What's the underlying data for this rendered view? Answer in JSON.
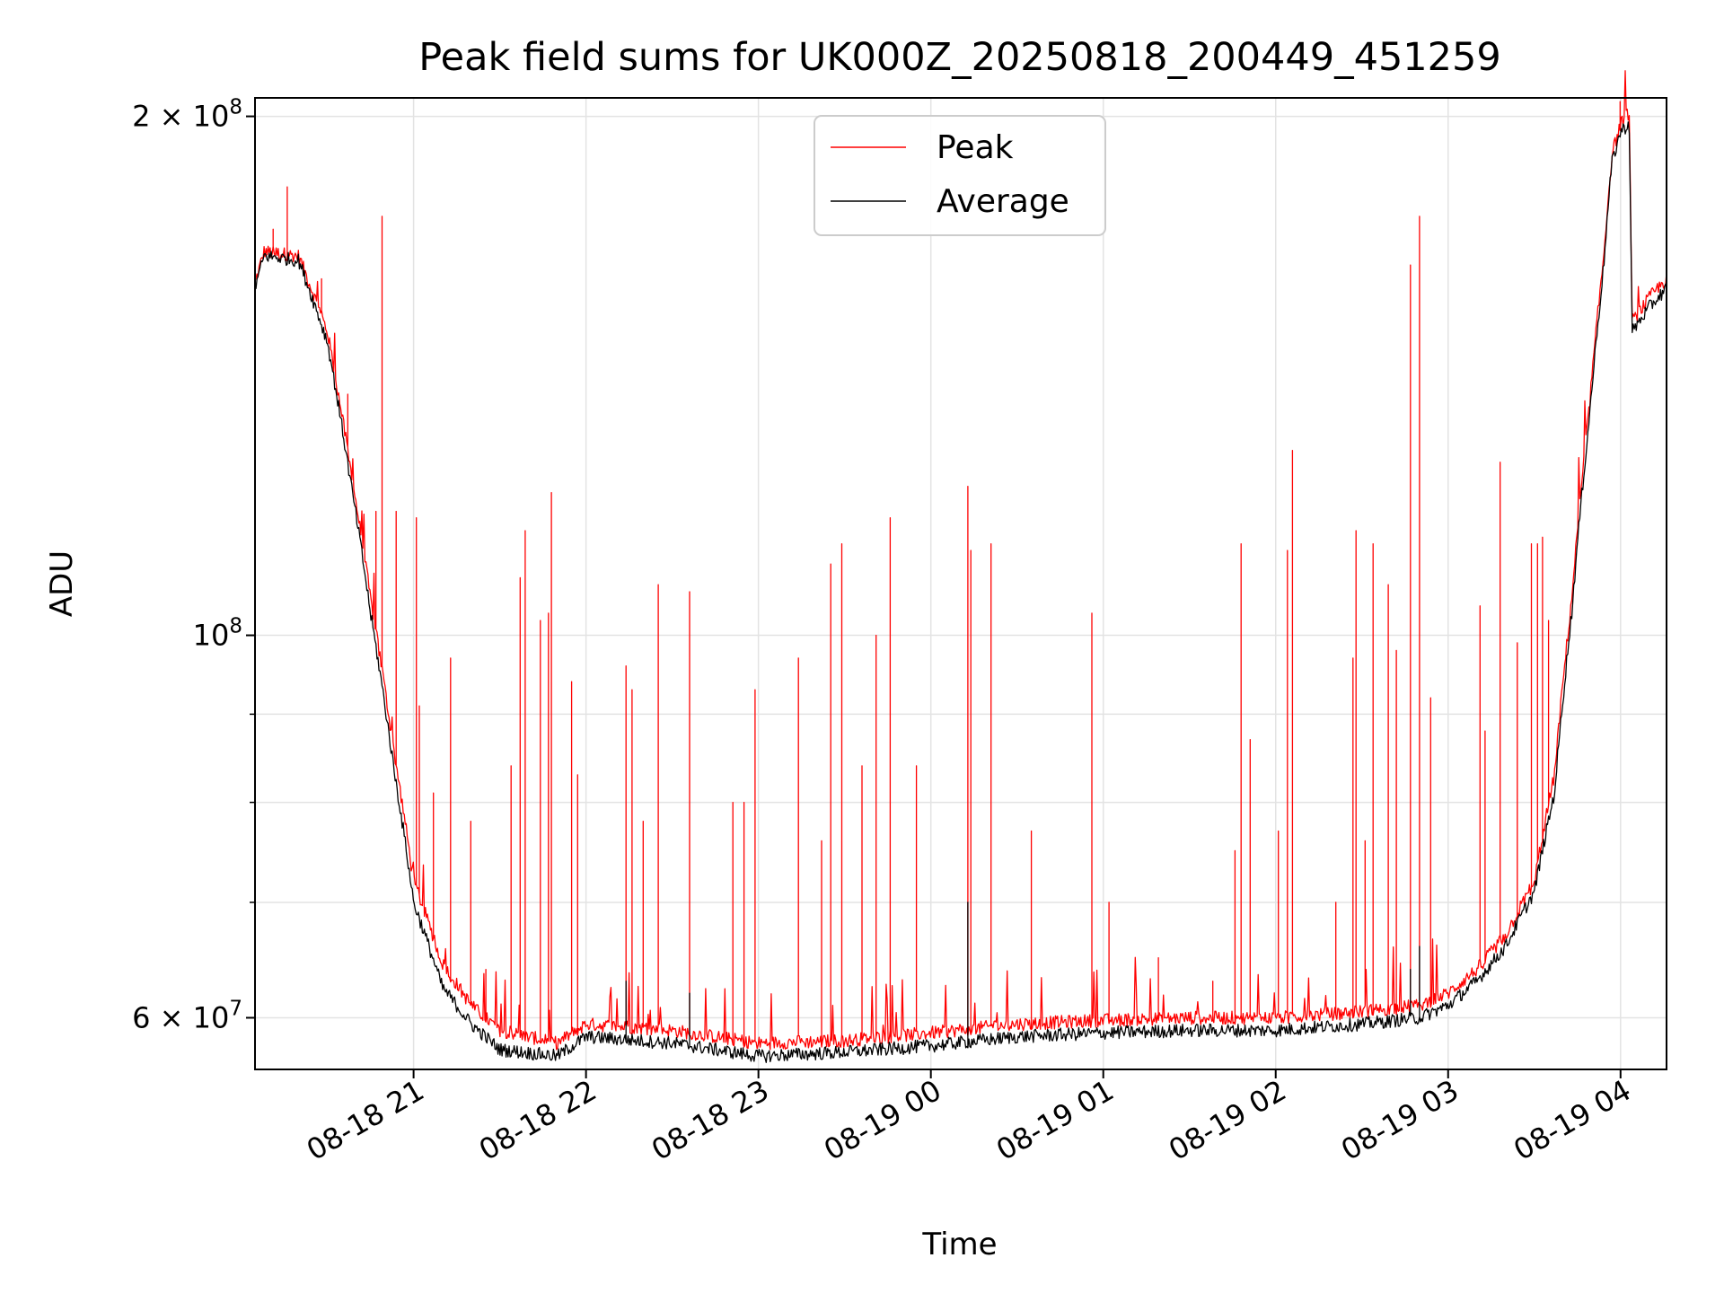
{
  "chart_data": {
    "type": "line",
    "title": "Peak field sums for UK000Z_20250818_200449_451259",
    "xlabel": "Time",
    "ylabel": "ADU",
    "y_scale": "log",
    "ylim": [
      56000000,
      205000000
    ],
    "xlim": [
      "2025-08-18 20:04:49",
      "2025-08-19 04:16:00"
    ],
    "grid": true,
    "legend_position": "upper center",
    "x_ticks": [
      {
        "value": "2025-08-18 21:00",
        "label": "08-18 21"
      },
      {
        "value": "2025-08-18 22:00",
        "label": "08-18 22"
      },
      {
        "value": "2025-08-18 23:00",
        "label": "08-18 23"
      },
      {
        "value": "2025-08-19 00:00",
        "label": "08-19 00"
      },
      {
        "value": "2025-08-19 01:00",
        "label": "08-19 01"
      },
      {
        "value": "2025-08-19 02:00",
        "label": "08-19 02"
      },
      {
        "value": "2025-08-19 03:00",
        "label": "08-19 03"
      },
      {
        "value": "2025-08-19 04:00",
        "label": "08-19 04"
      }
    ],
    "y_major_ticks": [
      {
        "value": 60000000,
        "mantissa": "6",
        "times": "×",
        "base": "10",
        "exp": "7"
      },
      {
        "value": 100000000,
        "mantissa": "",
        "times": "",
        "base": "10",
        "exp": "8"
      },
      {
        "value": 200000000,
        "mantissa": "2",
        "times": "×",
        "base": "10",
        "exp": "8"
      }
    ],
    "y_minor_ticks": [
      70000000,
      80000000,
      90000000
    ],
    "series": [
      {
        "name": "Peak",
        "color": "#ff0000",
        "baseline": [
          [
            "2025-08-18 20:04:49",
            160000000
          ],
          [
            "2025-08-18 20:08",
            167000000
          ],
          [
            "2025-08-18 20:20",
            166000000
          ],
          [
            "2025-08-18 20:30",
            150000000
          ],
          [
            "2025-08-18 20:38",
            125000000
          ],
          [
            "2025-08-18 20:45",
            105000000
          ],
          [
            "2025-08-18 20:53",
            86000000
          ],
          [
            "2025-08-18 21:00",
            72000000
          ],
          [
            "2025-08-18 21:10",
            64500000
          ],
          [
            "2025-08-18 21:20",
            61000000
          ],
          [
            "2025-08-18 21:30",
            59000000
          ],
          [
            "2025-08-18 21:50",
            58000000
          ],
          [
            "2025-08-18 22:00",
            59500000
          ],
          [
            "2025-08-18 22:30",
            59000000
          ],
          [
            "2025-08-18 23:00",
            58000000
          ],
          [
            "2025-08-18 23:30",
            58200000
          ],
          [
            "2025-08-19 00:00",
            58800000
          ],
          [
            "2025-08-19 00:30",
            59500000
          ],
          [
            "2025-08-19 01:00",
            59800000
          ],
          [
            "2025-08-19 01:30",
            60000000
          ],
          [
            "2025-08-19 02:00",
            60000000
          ],
          [
            "2025-08-19 02:30",
            60500000
          ],
          [
            "2025-08-19 02:50",
            61000000
          ],
          [
            "2025-08-19 03:00",
            62000000
          ],
          [
            "2025-08-19 03:10",
            64000000
          ],
          [
            "2025-08-19 03:20",
            67000000
          ],
          [
            "2025-08-19 03:30",
            72000000
          ],
          [
            "2025-08-19 03:37",
            83000000
          ],
          [
            "2025-08-19 03:43",
            105000000
          ],
          [
            "2025-08-19 03:49",
            135000000
          ],
          [
            "2025-08-19 03:54",
            165000000
          ],
          [
            "2025-08-19 03:57",
            190000000
          ],
          [
            "2025-08-19 04:00",
            198000000
          ],
          [
            "2025-08-19 04:03",
            201000000
          ],
          [
            "2025-08-19 04:04",
            152000000
          ],
          [
            "2025-08-19 04:10",
            157000000
          ],
          [
            "2025-08-19 04:16",
            161000000
          ]
        ],
        "spikes": [
          [
            "2025-08-18 20:11",
            172000000
          ],
          [
            "2025-08-18 20:16",
            182000000
          ],
          [
            "2025-08-18 20:28",
            161000000
          ],
          [
            "2025-08-18 20:37",
            138000000
          ],
          [
            "2025-08-18 20:47",
            118000000
          ],
          [
            "2025-08-18 20:54",
            118000000
          ],
          [
            "2025-08-18 21:02",
            91000000
          ],
          [
            "2025-08-18 20:49",
            175000000
          ],
          [
            "2025-08-18 21:01",
            117000000
          ],
          [
            "2025-08-18 21:07",
            81000000
          ],
          [
            "2025-08-18 21:13",
            97000000
          ],
          [
            "2025-08-18 21:20",
            78000000
          ],
          [
            "2025-08-18 21:25",
            64000000
          ],
          [
            "2025-08-18 21:34",
            84000000
          ],
          [
            "2025-08-18 21:37",
            108000000
          ],
          [
            "2025-08-18 21:39",
            115000000
          ],
          [
            "2025-08-18 21:44",
            102000000
          ],
          [
            "2025-08-18 21:47",
            103000000
          ],
          [
            "2025-08-18 21:48",
            121000000
          ],
          [
            "2025-08-18 21:55",
            94000000
          ],
          [
            "2025-08-18 21:57",
            83000000
          ],
          [
            "2025-08-18 22:14",
            96000000
          ],
          [
            "2025-08-18 22:16",
            93000000
          ],
          [
            "2025-08-18 22:20",
            78000000
          ],
          [
            "2025-08-18 22:25",
            107000000
          ],
          [
            "2025-08-18 22:36",
            106000000
          ],
          [
            "2025-08-18 22:51",
            80000000
          ],
          [
            "2025-08-18 22:55",
            80000000
          ],
          [
            "2025-08-18 22:59",
            93000000
          ],
          [
            "2025-08-18 23:14",
            97000000
          ],
          [
            "2025-08-18 23:22",
            76000000
          ],
          [
            "2025-08-18 23:25",
            110000000
          ],
          [
            "2025-08-18 23:29",
            113000000
          ],
          [
            "2025-08-18 23:36",
            84000000
          ],
          [
            "2025-08-18 23:41",
            100000000
          ],
          [
            "2025-08-18 23:46",
            117000000
          ],
          [
            "2025-08-18 23:55",
            84000000
          ],
          [
            "2025-08-19 00:13",
            122000000
          ],
          [
            "2025-08-19 00:14",
            112000000
          ],
          [
            "2025-08-19 00:21",
            113000000
          ],
          [
            "2025-08-19 00:35",
            77000000
          ],
          [
            "2025-08-19 00:56",
            103000000
          ],
          [
            "2025-08-19 01:02",
            70000000
          ],
          [
            "2025-08-19 01:19",
            65000000
          ],
          [
            "2025-08-19 01:38",
            63000000
          ],
          [
            "2025-08-19 01:46",
            75000000
          ],
          [
            "2025-08-19 01:48",
            113000000
          ],
          [
            "2025-08-19 01:51",
            87000000
          ],
          [
            "2025-08-19 02:01",
            77000000
          ],
          [
            "2025-08-19 02:04",
            112000000
          ],
          [
            "2025-08-19 02:06",
            128000000
          ],
          [
            "2025-08-19 02:21",
            70000000
          ],
          [
            "2025-08-19 02:27",
            97000000
          ],
          [
            "2025-08-19 02:28",
            115000000
          ],
          [
            "2025-08-19 02:31",
            76000000
          ],
          [
            "2025-08-19 02:34",
            113000000
          ],
          [
            "2025-08-19 02:39",
            107000000
          ],
          [
            "2025-08-19 02:42",
            98000000
          ],
          [
            "2025-08-19 02:47",
            164000000
          ],
          [
            "2025-08-19 02:50",
            175000000
          ],
          [
            "2025-08-19 02:54",
            92000000
          ],
          [
            "2025-08-19 03:11",
            104000000
          ],
          [
            "2025-08-19 03:13",
            88000000
          ],
          [
            "2025-08-19 03:18",
            126000000
          ],
          [
            "2025-08-19 03:24",
            99000000
          ],
          [
            "2025-08-19 03:29",
            113000000
          ],
          [
            "2025-08-19 03:31",
            113000000
          ],
          [
            "2025-08-19 03:33",
            114000000
          ],
          [
            "2025-08-19 03:35",
            102000000
          ],
          [
            "2025-08-19 04:00",
            204000000
          ]
        ]
      },
      {
        "name": "Average",
        "color": "#000000",
        "baseline": [
          [
            "2025-08-18 20:04:49",
            159000000
          ],
          [
            "2025-08-18 20:08",
            166000000
          ],
          [
            "2025-08-18 20:20",
            165000000
          ],
          [
            "2025-08-18 20:30",
            148000000
          ],
          [
            "2025-08-18 20:38",
            123000000
          ],
          [
            "2025-08-18 20:45",
            103000000
          ],
          [
            "2025-08-18 20:53",
            84000000
          ],
          [
            "2025-08-18 21:00",
            70000000
          ],
          [
            "2025-08-18 21:10",
            62500000
          ],
          [
            "2025-08-18 21:20",
            59500000
          ],
          [
            "2025-08-18 21:30",
            57500000
          ],
          [
            "2025-08-18 21:50",
            57000000
          ],
          [
            "2025-08-18 22:00",
            58500000
          ],
          [
            "2025-08-18 22:30",
            58000000
          ],
          [
            "2025-08-18 23:00",
            57000000
          ],
          [
            "2025-08-18 23:30",
            57300000
          ],
          [
            "2025-08-19 00:00",
            57800000
          ],
          [
            "2025-08-19 00:30",
            58500000
          ],
          [
            "2025-08-19 01:00",
            58800000
          ],
          [
            "2025-08-19 01:30",
            59000000
          ],
          [
            "2025-08-19 02:00",
            59000000
          ],
          [
            "2025-08-19 02:30",
            59500000
          ],
          [
            "2025-08-19 02:50",
            60000000
          ],
          [
            "2025-08-19 03:00",
            61000000
          ],
          [
            "2025-08-19 03:10",
            63000000
          ],
          [
            "2025-08-19 03:20",
            66000000
          ],
          [
            "2025-08-19 03:30",
            71000000
          ],
          [
            "2025-08-19 03:37",
            81000000
          ],
          [
            "2025-08-19 03:43",
            103000000
          ],
          [
            "2025-08-19 03:49",
            133000000
          ],
          [
            "2025-08-19 03:54",
            163000000
          ],
          [
            "2025-08-19 03:57",
            188000000
          ],
          [
            "2025-08-19 04:00",
            196000000
          ],
          [
            "2025-08-19 04:03",
            198000000
          ],
          [
            "2025-08-19 04:04",
            150000000
          ],
          [
            "2025-08-19 04:10",
            155000000
          ],
          [
            "2025-08-19 04:16",
            159000000
          ]
        ],
        "spikes": [
          [
            "2025-08-19 00:13",
            70000000
          ],
          [
            "2025-08-18 22:14",
            63000000
          ],
          [
            "2025-08-18 22:36",
            62000000
          ],
          [
            "2025-08-19 02:50",
            66000000
          ],
          [
            "2025-08-19 02:47",
            64000000
          ]
        ]
      }
    ]
  }
}
